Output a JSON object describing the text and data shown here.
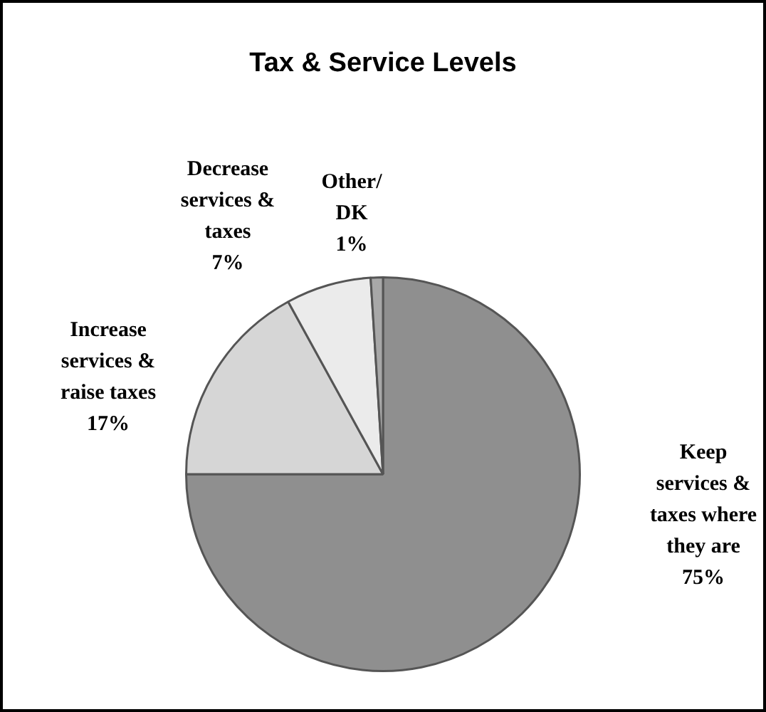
{
  "chart_data": {
    "type": "pie",
    "title": "Tax & Service Levels",
    "categories": [
      "Keep services & taxes where they are",
      "Increase services & raise taxes",
      "Decrease services & taxes",
      "Other/ DK"
    ],
    "values": [
      75,
      17,
      7,
      1
    ],
    "colors": [
      "#8f8f8f",
      "#d6d6d6",
      "#ebebeb",
      "#a8a8a8"
    ],
    "value_labels": [
      "75%",
      "17%",
      "7%",
      "1%"
    ],
    "legend": false
  }
}
